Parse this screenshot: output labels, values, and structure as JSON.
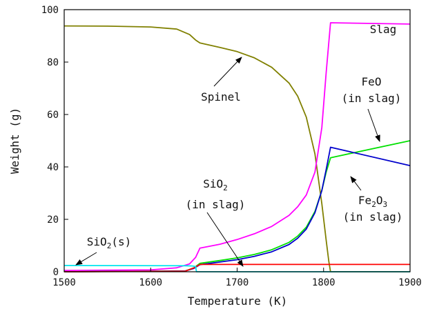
{
  "chart_data": {
    "type": "line",
    "xlabel": "Temperature (K)",
    "ylabel": "Weight (g)",
    "xlim": [
      1500,
      1900
    ],
    "ylim": [
      0,
      100
    ],
    "xticks": [
      1500,
      1600,
      1700,
      1800,
      1900
    ],
    "yticks": [
      0,
      20,
      40,
      60,
      80,
      100
    ],
    "grid": false,
    "series": [
      {
        "key": "spinel",
        "color": "#808000",
        "x": [
          1500,
          1550,
          1600,
          1630,
          1645,
          1652,
          1657,
          1680,
          1700,
          1720,
          1740,
          1760,
          1770,
          1780,
          1790,
          1798,
          1803,
          1806,
          1808,
          1900
        ],
        "y": [
          93.8,
          93.7,
          93.4,
          92.6,
          90.5,
          88.4,
          87.3,
          85.6,
          84.0,
          81.6,
          78.0,
          72.0,
          67.0,
          59.0,
          45.0,
          26.0,
          12.0,
          4.0,
          0.0,
          0.0
        ]
      },
      {
        "key": "slag",
        "color": "#ff00ff",
        "x": [
          1500,
          1600,
          1630,
          1645,
          1652,
          1657,
          1680,
          1700,
          1720,
          1740,
          1760,
          1770,
          1780,
          1790,
          1798,
          1803,
          1808,
          1900
        ],
        "y": [
          0.5,
          0.7,
          1.5,
          3.0,
          5.5,
          9.0,
          10.5,
          12.3,
          14.5,
          17.3,
          21.5,
          24.8,
          29.3,
          38.0,
          55.0,
          76.0,
          95.0,
          94.5
        ]
      },
      {
        "key": "feo",
        "color": "#00e000",
        "x": [
          1500,
          1640,
          1650,
          1657,
          1680,
          1700,
          1720,
          1740,
          1760,
          1770,
          1780,
          1790,
          1798,
          1803,
          1808,
          1900
        ],
        "y": [
          0.0,
          0.3,
          1.5,
          3.2,
          4.3,
          5.3,
          6.6,
          8.4,
          11.2,
          13.6,
          17.0,
          23.0,
          31.0,
          38.0,
          43.5,
          50.0
        ]
      },
      {
        "key": "fe2o3",
        "color": "#0000cc",
        "x": [
          1500,
          1640,
          1650,
          1657,
          1680,
          1700,
          1720,
          1740,
          1760,
          1770,
          1780,
          1790,
          1798,
          1803,
          1808,
          1900
        ],
        "y": [
          0.0,
          0.3,
          1.3,
          2.7,
          3.7,
          4.6,
          5.9,
          7.6,
          10.4,
          12.8,
          16.3,
          22.5,
          31.0,
          39.0,
          47.5,
          40.5
        ]
      },
      {
        "key": "sio2_slag",
        "color": "#ff0000",
        "x": [
          1500,
          1640,
          1650,
          1657,
          1900
        ],
        "y": [
          0.0,
          0.2,
          1.5,
          2.8,
          2.8
        ]
      },
      {
        "key": "sio2_s",
        "color": "#00e5ee",
        "x": [
          1500,
          1640,
          1648,
          1652,
          1653,
          1900
        ],
        "y": [
          2.4,
          2.3,
          2.2,
          2.0,
          0.0,
          0.0
        ]
      }
    ],
    "annotations": {
      "slag": "Slag",
      "spinel": "Spinel",
      "feo_1": "FeO",
      "feo_2": "(in slag)",
      "sio2_main": "SiO",
      "sio2_sub": "2",
      "sio2_slag": "(in slag)",
      "fe2o3_a": "Fe",
      "fe2o3_sub1": "2",
      "fe2o3_b": "O",
      "fe2o3_sub2": "3",
      "fe2o3_slag": "(in slag)",
      "sio2s_main": "SiO",
      "sio2s_sub": "2",
      "sio2s_tail": "(s)"
    }
  }
}
